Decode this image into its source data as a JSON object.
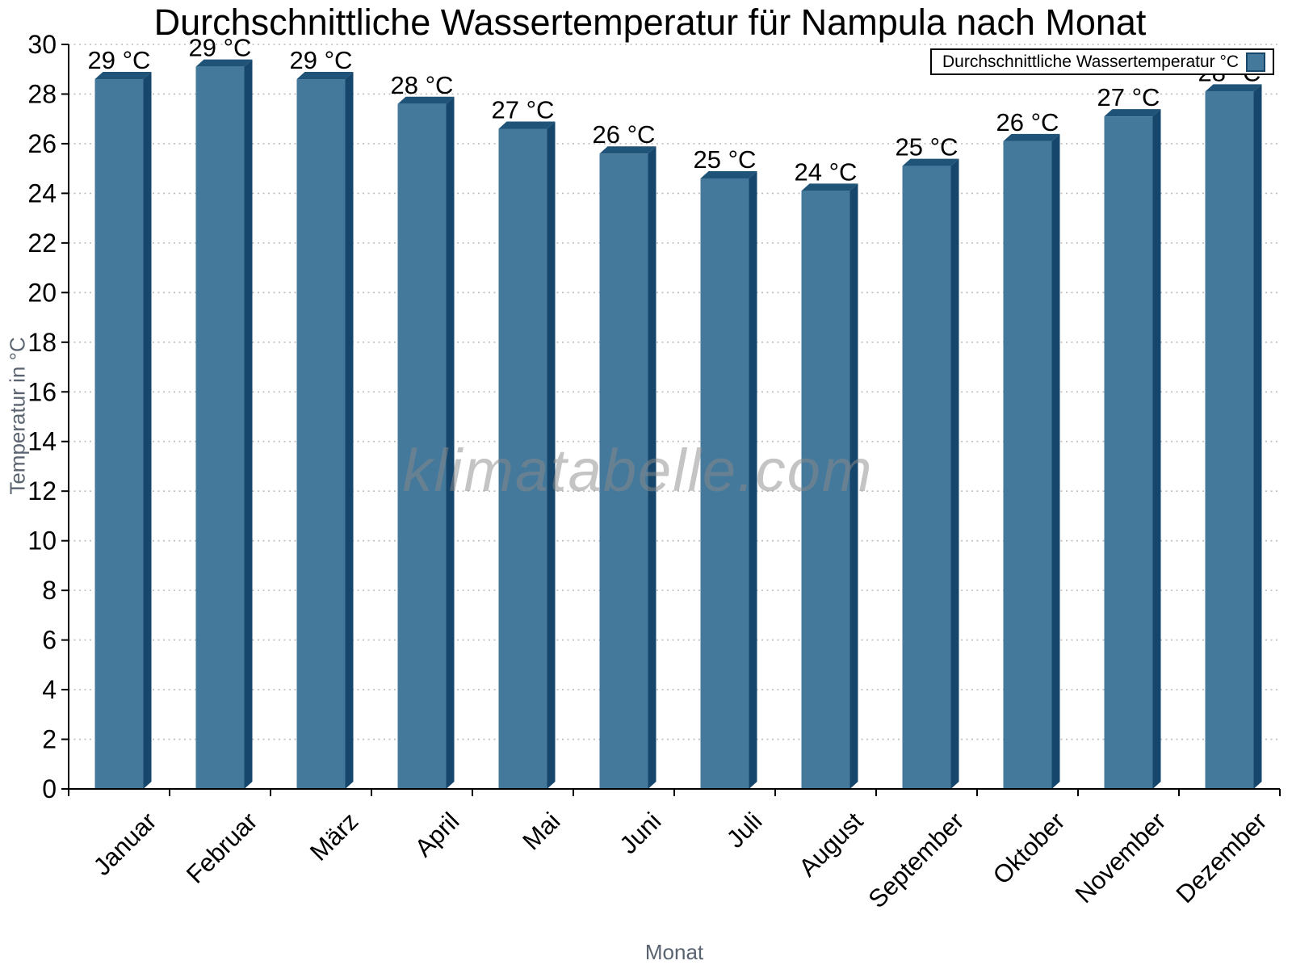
{
  "chart_data": {
    "type": "bar",
    "title": "Durchschnittliche Wassertemperatur für Nampula nach Monat",
    "xlabel": "Monat",
    "ylabel": "Temperatur in °C",
    "watermark": "klimatabelle.com",
    "legend": {
      "label": "Durchschnittliche Wassertemperatur °C",
      "position": "top-right"
    },
    "categories": [
      "Januar",
      "Februar",
      "März",
      "April",
      "Mai",
      "Juni",
      "Juli",
      "August",
      "September",
      "Oktober",
      "November",
      "Dezember"
    ],
    "values": [
      28.6,
      29.1,
      28.6,
      27.6,
      26.6,
      25.6,
      24.6,
      24.1,
      25.1,
      26.1,
      27.1,
      28.1
    ],
    "value_labels": [
      "29 °C",
      "29 °C",
      "29 °C",
      "28 °C",
      "27 °C",
      "26 °C",
      "25 °C",
      "24 °C",
      "25 °C",
      "26 °C",
      "27 °C",
      "28 °C"
    ],
    "ylim": [
      0,
      30
    ],
    "ytick_step": 2,
    "grid": true,
    "colors": {
      "bar_face": "#45799B",
      "bar_side": "#16466B",
      "bar_top": "#1F5377",
      "axis": "#000000",
      "grid": "#bcbcbc",
      "axis_title_gray": "#5a6470",
      "tick_label": "#000000",
      "watermark_gray": "#8a8a8a"
    }
  }
}
